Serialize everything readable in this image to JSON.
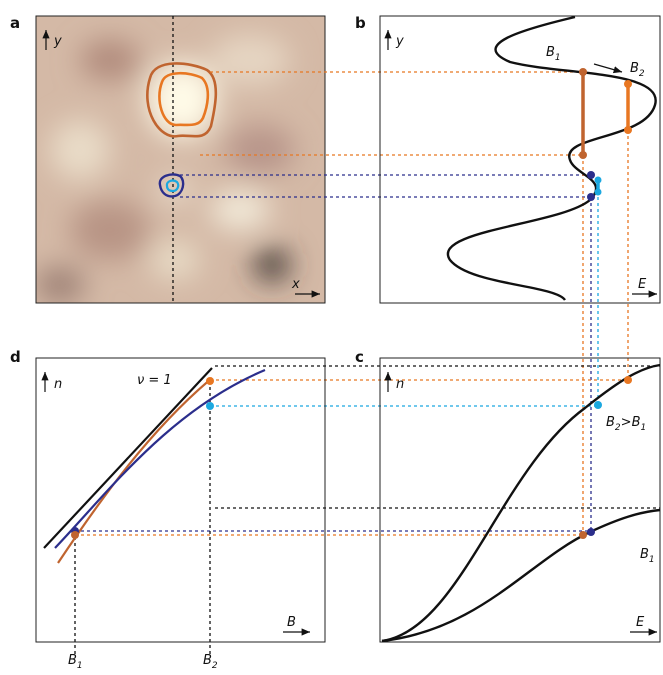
{
  "panels": {
    "a": {
      "label": "a",
      "y_axis": "y",
      "x_axis": "x"
    },
    "b": {
      "label": "b",
      "y_axis": "y",
      "x_axis": "E",
      "marker_1": {
        "base": "B",
        "sub": "1"
      },
      "marker_2": {
        "base": "B",
        "sub": "2"
      }
    },
    "c": {
      "label": "c",
      "y_axis": "n",
      "x_axis": "E",
      "curve_upper": {
        "left": {
          "base": "B",
          "sub": "2"
        },
        "relation": ">",
        "right": {
          "base": "B",
          "sub": "1"
        }
      },
      "curve_lower": {
        "base": "B",
        "sub": "1"
      }
    },
    "d": {
      "label": "d",
      "y_axis": "n",
      "x_axis": "B",
      "filling": "ν = 1",
      "tick_1": {
        "base": "B",
        "sub": "1"
      },
      "tick_2": {
        "base": "B",
        "sub": "2"
      }
    }
  }
}
